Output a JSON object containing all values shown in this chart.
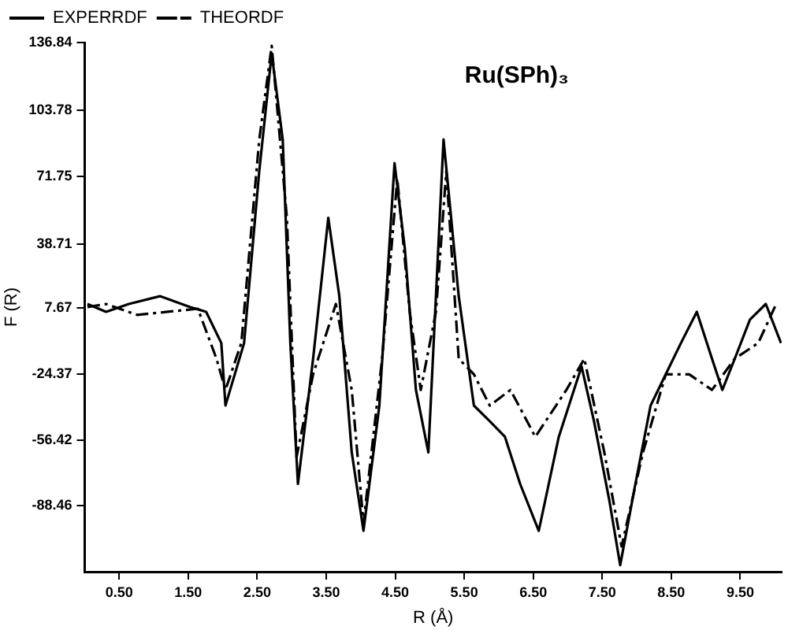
{
  "chart_data": {
    "type": "line",
    "title": "Ru(SPh)₃",
    "xlabel": "R (Å)",
    "ylabel": "F (R)",
    "xlim": [
      0,
      10.1
    ],
    "ylim": [
      -120.5,
      136.84
    ],
    "xticks": [
      {
        "value": 0.5,
        "label": "0.50"
      },
      {
        "value": 1.5,
        "label": "1.50"
      },
      {
        "value": 2.5,
        "label": "2.50"
      },
      {
        "value": 3.5,
        "label": "3.50"
      },
      {
        "value": 4.5,
        "label": "4.50"
      },
      {
        "value": 5.5,
        "label": "5.50"
      },
      {
        "value": 6.5,
        "label": "6.50"
      },
      {
        "value": 7.5,
        "label": "7.50"
      },
      {
        "value": 8.5,
        "label": "8.50"
      },
      {
        "value": 9.5,
        "label": "9.50"
      }
    ],
    "yticks": [
      -88.46,
      -56.42,
      -24.37,
      7.67,
      38.71,
      71.75,
      103.78,
      136.84
    ],
    "grid": false,
    "legend": "top left",
    "marker": "none",
    "series": [
      {
        "name": "EXPERRDF",
        "color": "#000000",
        "line_style": "solid",
        "x": [
          0.04,
          0.31,
          0.64,
          1.09,
          1.53,
          1.76,
          1.98,
          2.04,
          2.31,
          2.53,
          2.71,
          2.87,
          2.98,
          3.09,
          3.31,
          3.53,
          3.69,
          3.87,
          4.04,
          4.27,
          4.49,
          4.64,
          4.8,
          4.98,
          5.2,
          5.42,
          5.64,
          5.87,
          6.09,
          6.31,
          6.58,
          6.87,
          7.2,
          7.38,
          7.6,
          7.76,
          7.98,
          8.2,
          8.42,
          8.64,
          8.87,
          9.09,
          9.24,
          9.42,
          9.64,
          9.87,
          10.09
        ],
        "values": [
          9.7,
          5.9,
          9.7,
          13.5,
          8.2,
          5.9,
          -9.3,
          -39.7,
          -9.3,
          74.4,
          131.5,
          89.7,
          -9.3,
          -77.8,
          -16.9,
          51.6,
          13.5,
          -62.5,
          -100.6,
          -39.7,
          78.2,
          36.4,
          -32.1,
          -62.5,
          89.7,
          13.5,
          -39.7,
          -47.3,
          -54.9,
          -77.8,
          -100.6,
          -54.9,
          -20.7,
          -47.3,
          -85.4,
          -117.3,
          -77.8,
          -39.7,
          -24.5,
          -9.3,
          5.9,
          -16.9,
          -32.1,
          -16.9,
          2.1,
          9.7,
          -9.3
        ]
      },
      {
        "name": "THEORDF",
        "color": "#000000",
        "line_style": "dashed",
        "x": [
          0.04,
          0.31,
          0.76,
          1.2,
          1.64,
          1.91,
          2.04,
          2.27,
          2.53,
          2.71,
          2.93,
          3.07,
          3.31,
          3.64,
          3.87,
          4.04,
          4.31,
          4.53,
          4.71,
          4.87,
          5.09,
          5.24,
          5.42,
          5.64,
          5.87,
          6.17,
          6.53,
          6.98,
          7.24,
          7.53,
          7.78,
          8.09,
          8.42,
          8.76,
          9.09,
          9.42,
          9.76,
          10.02
        ],
        "values": [
          8.2,
          9.7,
          4.4,
          5.9,
          7.4,
          -16.9,
          -32.1,
          -9.3,
          89.7,
          135.3,
          51.6,
          -64.8,
          -24.5,
          9.7,
          -32.1,
          -96.8,
          -16.9,
          70.6,
          5.9,
          -32.1,
          5.9,
          74.4,
          -16.9,
          -24.5,
          -39.7,
          -32.1,
          -54.9,
          -32.1,
          -16.9,
          -62.5,
          -108.2,
          -62.5,
          -24.5,
          -24.5,
          -32.1,
          -16.9,
          -9.3,
          9.7
        ]
      }
    ]
  }
}
